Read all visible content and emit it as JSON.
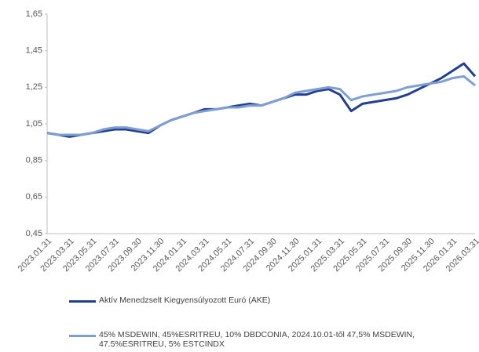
{
  "chart_data": {
    "type": "line",
    "categories": [
      "2023.01.31",
      null,
      "2023.03.31",
      null,
      "2023.05.31",
      null,
      "2023.07.31",
      null,
      "2023.09.30",
      null,
      "2023.11.30",
      null,
      "2024.01.31",
      null,
      "2024.03.31",
      null,
      "2024.05.31",
      null,
      "2024.07.31",
      null,
      "2024.09.30",
      null,
      "2024.11.30",
      null,
      "2025.01.31",
      null,
      "2025.03.31",
      null,
      "2025.05.31",
      null,
      "2025.07.31",
      null,
      "2025.09.30",
      null,
      "2025.11.30",
      null,
      "2026.01.31",
      null,
      "2026.03.31"
    ],
    "series": [
      {
        "name": "Aktív Menedzselt Kiegyensúlyozott Euró (AKE)",
        "color": "#203f8f",
        "values": [
          1.0,
          0.99,
          0.98,
          0.99,
          1.0,
          1.01,
          1.02,
          1.02,
          1.01,
          1.0,
          1.04,
          1.07,
          1.09,
          1.11,
          1.13,
          1.13,
          1.14,
          1.15,
          1.16,
          1.15,
          1.17,
          1.19,
          1.21,
          1.21,
          1.23,
          1.24,
          1.21,
          1.12,
          1.16,
          1.17,
          1.18,
          1.19,
          1.21,
          1.24,
          1.27,
          1.3,
          1.34,
          1.38,
          1.31
        ]
      },
      {
        "name": "45% MSDEWIN, 45%ESRITREU, 10% DBDCONIA, 2024.10.01-től 47,5% MSDEWIN, 47.5%ESRITREU, 5% ESTCINDX",
        "color": "#7f9fd4",
        "values": [
          1.0,
          0.99,
          0.99,
          0.99,
          1.0,
          1.02,
          1.03,
          1.03,
          1.02,
          1.01,
          1.04,
          1.07,
          1.09,
          1.11,
          1.12,
          1.13,
          1.14,
          1.14,
          1.15,
          1.15,
          1.17,
          1.19,
          1.22,
          1.23,
          1.24,
          1.25,
          1.24,
          1.18,
          1.2,
          1.21,
          1.22,
          1.23,
          1.25,
          1.26,
          1.27,
          1.28,
          1.3,
          1.31,
          1.26
        ]
      }
    ],
    "ylim": [
      0.45,
      1.65
    ],
    "yticks": [
      {
        "value": 0.45,
        "label": "0,45"
      },
      {
        "value": 0.65,
        "label": "0,65"
      },
      {
        "value": 0.85,
        "label": "0,85"
      },
      {
        "value": 1.05,
        "label": "1,05"
      },
      {
        "value": 1.25,
        "label": "1,25"
      },
      {
        "value": 1.45,
        "label": "1,45"
      },
      {
        "value": 1.65,
        "label": "1,65"
      }
    ]
  }
}
